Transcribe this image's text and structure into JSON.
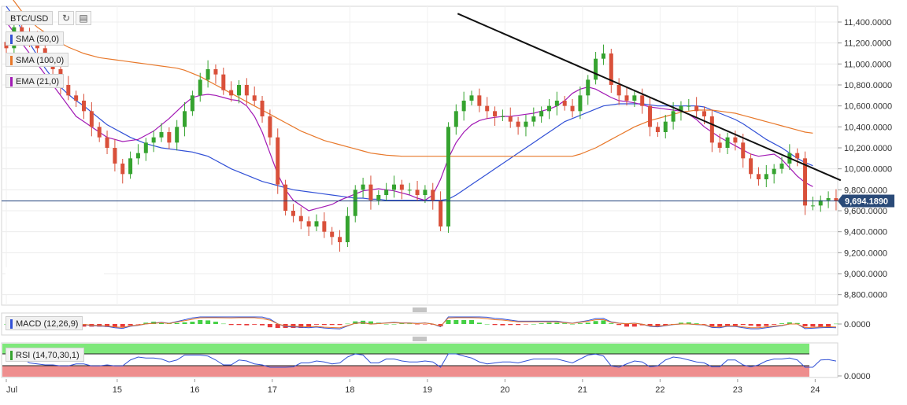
{
  "toolbar": {
    "symbol": "BTC/USD",
    "refresh_icon": "refresh-icon",
    "fullscreen_icon": "fullscreen-icon"
  },
  "indicators": {
    "sma50": {
      "label": "SMA (50,0)",
      "color": "#3150d6"
    },
    "sma100": {
      "label": "SMA (100,0)",
      "color": "#e8782a"
    },
    "ema21": {
      "label": "EMA (21,0)",
      "color": "#a21ab5"
    },
    "macd": {
      "label": "MACD (12,26,9)",
      "zero_label": "0.0000"
    },
    "rsi": {
      "label": "RSI (14,70,30,1)",
      "zero_label": "0.0000"
    }
  },
  "colors": {
    "up": "#35a32f",
    "down": "#d9503a",
    "trendline": "#111111",
    "price_line": "#1d3f7a",
    "rsi_overbought": "#7ee87a",
    "rsi_oversold": "#ee8e8e"
  },
  "chart_data": {
    "type": "candlestick",
    "title": "BTC/USD",
    "price_axis": {
      "ylim": [
        8700,
        11550
      ],
      "ticks": [
        8800,
        9000,
        9200,
        9400,
        9600,
        9800,
        10000,
        10200,
        10400,
        10600,
        10800,
        11000,
        11200,
        11400
      ],
      "tick_labels": [
        "8,800.0000",
        "9,000.0000",
        "9,200.0000",
        "9,400.0000",
        "9,600.0000",
        "9,800.0000",
        "10,000.0000",
        "10,200.0000",
        "10,400.0000",
        "10,600.0000",
        "10,800.0000",
        "11,000.0000",
        "11,200.0000",
        "11,400.0000"
      ]
    },
    "last_price": 9694.189,
    "last_price_label": "9,694.1890",
    "x_axis": {
      "labels": [
        "Jul",
        "15",
        "16",
        "17",
        "18",
        "19",
        "20",
        "21",
        "22",
        "23",
        "24"
      ],
      "day_index": [
        0,
        14.3,
        24.3,
        34.3,
        44.3,
        54.3,
        64.3,
        74.3,
        84.3,
        94.3,
        104.3
      ]
    },
    "close": [
      11150,
      11350,
      11300,
      11250,
      11150,
      11050,
      10950,
      10800,
      10700,
      10650,
      10550,
      10400,
      10300,
      10200,
      10050,
      9950,
      10100,
      10150,
      10250,
      10300,
      10350,
      10250,
      10400,
      10550,
      10700,
      10850,
      10950,
      10900,
      10750,
      10700,
      10800,
      10700,
      10650,
      10500,
      10300,
      9850,
      9600,
      9550,
      9500,
      9450,
      9500,
      9400,
      9350,
      9300,
      9550,
      9800,
      9850,
      9700,
      9750,
      9800,
      9850,
      9800,
      9800,
      9750,
      9800,
      9700,
      9450,
      10400,
      10550,
      10650,
      10700,
      10600,
      10550,
      10500,
      10500,
      10450,
      10400,
      10450,
      10500,
      10550,
      10600,
      10650,
      10600,
      10550,
      10700,
      10850,
      11050,
      11100,
      10800,
      10700,
      10650,
      10700,
      10600,
      10400,
      10350,
      10450,
      10550,
      10600,
      10600,
      10550,
      10500,
      10250,
      10200,
      10300,
      10250,
      10100,
      9950,
      9900,
      9950,
      10000,
      10050,
      10150,
      10100,
      9650,
      9650,
      9700,
      9720,
      9694
    ],
    "ohlc_note": "close values per 4h candle; open equals previous close",
    "series": [
      {
        "name": "SMA (50,0)",
        "values": [
          11550,
          11450,
          11330,
          11200,
          11080,
          10960,
          10860,
          10780,
          10710,
          10650,
          10600,
          10540,
          10480,
          10420,
          10380,
          10340,
          10300,
          10270,
          10240,
          10220,
          10200,
          10190,
          10180,
          10170,
          10160,
          10140,
          10120,
          10080,
          10040,
          10000,
          9970,
          9940,
          9910,
          9880,
          9860,
          9840,
          9820,
          9800,
          9790,
          9780,
          9770,
          9760,
          9750,
          9740,
          9730,
          9720,
          9720,
          9710,
          9710,
          9700,
          9700,
          9700,
          9700,
          9700,
          9700,
          9700,
          9700,
          9710,
          9750,
          9800,
          9850,
          9900,
          9950,
          10000,
          10050,
          10100,
          10150,
          10200,
          10250,
          10300,
          10350,
          10400,
          10450,
          10480,
          10510,
          10540,
          10570,
          10600,
          10610,
          10620,
          10620,
          10620,
          10620,
          10610,
          10600,
          10600,
          10600,
          10600,
          10600,
          10600,
          10590,
          10560,
          10530,
          10500,
          10470,
          10430,
          10380,
          10330,
          10280,
          10240,
          10200,
          10150,
          10100,
          10060,
          10030
        ]
      },
      {
        "name": "SMA (100,0)",
        "values": [
          11700,
          11600,
          11500,
          11420,
          11350,
          11300,
          11250,
          11200,
          11160,
          11130,
          11100,
          11080,
          11060,
          11050,
          11040,
          11030,
          11020,
          11010,
          11000,
          10990,
          10980,
          10970,
          10960,
          10940,
          10910,
          10880,
          10840,
          10800,
          10760,
          10720,
          10680,
          10640,
          10600,
          10560,
          10520,
          10480,
          10440,
          10400,
          10360,
          10330,
          10300,
          10270,
          10250,
          10230,
          10210,
          10190,
          10170,
          10150,
          10140,
          10130,
          10125,
          10120,
          10120,
          10120,
          10120,
          10120,
          10120,
          10120,
          10120,
          10120,
          10120,
          10120,
          10120,
          10120,
          10120,
          10120,
          10120,
          10120,
          10120,
          10120,
          10120,
          10120,
          10120,
          10120,
          10140,
          10170,
          10200,
          10240,
          10280,
          10320,
          10360,
          10400,
          10430,
          10460,
          10480,
          10500,
          10520,
          10540,
          10550,
          10560,
          10560,
          10560,
          10550,
          10540,
          10530,
          10510,
          10490,
          10470,
          10450,
          10430,
          10410,
          10390,
          10370,
          10350,
          10340
        ]
      },
      {
        "name": "EMA (21,0)",
        "values": [
          11400,
          11300,
          11200,
          11100,
          11000,
          10900,
          10800,
          10700,
          10600,
          10500,
          10450,
          10400,
          10350,
          10300,
          10280,
          10260,
          10270,
          10280,
          10320,
          10360,
          10420,
          10480,
          10550,
          10620,
          10680,
          10700,
          10710,
          10700,
          10680,
          10660,
          10650,
          10600,
          10500,
          10350,
          10150,
          9950,
          9800,
          9700,
          9650,
          9600,
          9620,
          9640,
          9660,
          9700,
          9730,
          9760,
          9790,
          9800,
          9810,
          9800,
          9790,
          9770,
          9750,
          9720,
          9700,
          9750,
          9900,
          10100,
          10250,
          10350,
          10420,
          10460,
          10480,
          10490,
          10500,
          10500,
          10510,
          10520,
          10530,
          10550,
          10570,
          10600,
          10650,
          10720,
          10760,
          10780,
          10760,
          10720,
          10680,
          10650,
          10640,
          10630,
          10610,
          10590,
          10580,
          10570,
          10560,
          10550,
          10520,
          10470,
          10400,
          10350,
          10300,
          10260,
          10220,
          10180,
          10140,
          10120,
          10130,
          10140,
          10090,
          10010,
          9930,
          9870,
          9830
        ]
      }
    ],
    "trendline": {
      "from": {
        "day": 58.2,
        "value": 11480
      },
      "to": {
        "day": 107.6,
        "value": 9890
      }
    },
    "macd_panel": {
      "label": "MACD (12,26,9)",
      "tick": "0.0000"
    },
    "rsi_panel": {
      "label": "RSI (14,70,30,1)",
      "tick": "0.0000"
    }
  }
}
